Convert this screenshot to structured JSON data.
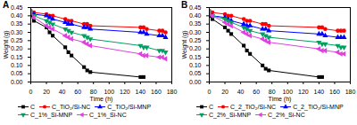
{
  "chart_data": [
    {
      "type": "line",
      "title": "A",
      "x_label": "Time (h)",
      "y_label": "Weight (g)",
      "legend": "bottom",
      "x": [
        0,
        4,
        20,
        24,
        28,
        44,
        48,
        52,
        68,
        72,
        76,
        140,
        144,
        148,
        164,
        168,
        172
      ],
      "xlim": [
        0,
        180
      ],
      "xticks": [
        0,
        20,
        40,
        60,
        80,
        100,
        120,
        140,
        160,
        180
      ],
      "ylim": [
        0,
        0.45
      ],
      "yticks": [
        {
          "value": 0,
          "label": "0.00"
        },
        {
          "value": 0.05,
          "label": "0.05"
        },
        {
          "value": 0.1,
          "label": "0.10"
        },
        {
          "value": 0.15,
          "label": "0.15"
        },
        {
          "value": 0.2,
          "label": "0.20"
        },
        {
          "value": 0.25,
          "label": "0.25"
        },
        {
          "value": 0.3,
          "label": "0.30"
        },
        {
          "value": 0.35,
          "label": "0.35"
        },
        {
          "value": 0.4,
          "label": "0.40"
        },
        {
          "value": 0.45,
          "label": "0.45"
        }
      ],
      "series": [
        {
          "name": "C",
          "color": "#000000",
          "marker": "square",
          "values": [
            0.4,
            0.37,
            0.33,
            0.3,
            0.28,
            0.21,
            0.18,
            0.16,
            0.09,
            0.07,
            0.06,
            0.03,
            0.03,
            null,
            null,
            null,
            null
          ]
        },
        {
          "name": "C_TiO₂/Si-NC",
          "color": "#ff0000",
          "marker": "circle",
          "values": [
            0.43,
            0.42,
            0.41,
            0.4,
            0.4,
            0.38,
            0.37,
            0.37,
            0.35,
            0.35,
            0.34,
            0.33,
            0.33,
            0.32,
            0.31,
            0.31,
            0.3
          ]
        },
        {
          "name": "C_TiO₂/Si-MNP",
          "color": "#0000ff",
          "marker": "triangle-up",
          "values": [
            0.42,
            0.41,
            0.4,
            0.39,
            0.38,
            0.36,
            0.35,
            0.35,
            0.33,
            0.33,
            0.32,
            0.3,
            0.3,
            0.29,
            0.28,
            0.28,
            0.27
          ]
        },
        {
          "name": "C_1%_Si-MNP",
          "color": "#00a060",
          "marker": "triangle-down",
          "values": [
            0.42,
            0.4,
            0.37,
            0.36,
            0.35,
            0.32,
            0.31,
            0.3,
            0.28,
            0.27,
            0.26,
            0.22,
            0.21,
            0.21,
            0.19,
            0.19,
            0.18
          ]
        },
        {
          "name": "C_1%_Si-NC",
          "color": "#e040e0",
          "marker": "triangle-left",
          "values": [
            0.42,
            0.39,
            0.34,
            0.33,
            0.32,
            0.28,
            0.27,
            0.26,
            0.24,
            0.23,
            0.22,
            0.17,
            0.16,
            0.16,
            0.15,
            0.15,
            0.14
          ]
        }
      ]
    },
    {
      "type": "line",
      "title": "B",
      "x_label": "Time (h)",
      "y_label": "Weight (g)",
      "legend": "bottom",
      "x": [
        0,
        4,
        20,
        24,
        28,
        44,
        48,
        52,
        68,
        72,
        76,
        140,
        144,
        148,
        164,
        168,
        172
      ],
      "xlim": [
        0,
        180
      ],
      "xticks": [
        0,
        20,
        40,
        60,
        80,
        100,
        120,
        140,
        160,
        180
      ],
      "ylim": [
        0,
        0.45
      ],
      "yticks": [
        {
          "value": 0,
          "label": "0.00"
        },
        {
          "value": 0.05,
          "label": "0.05"
        },
        {
          "value": 0.1,
          "label": "0.10"
        },
        {
          "value": 0.15,
          "label": "0.15"
        },
        {
          "value": 0.2,
          "label": "0.20"
        },
        {
          "value": 0.25,
          "label": "0.25"
        },
        {
          "value": 0.3,
          "label": "0.30"
        },
        {
          "value": 0.35,
          "label": "0.35"
        },
        {
          "value": 0.4,
          "label": "0.40"
        },
        {
          "value": 0.45,
          "label": "0.45"
        }
      ],
      "series": [
        {
          "name": "C",
          "color": "#000000",
          "marker": "square",
          "values": [
            0.4,
            0.38,
            0.33,
            0.31,
            0.29,
            0.22,
            0.19,
            0.17,
            0.1,
            0.08,
            0.07,
            0.03,
            0.03,
            null,
            null,
            null,
            null
          ]
        },
        {
          "name": "C_2_TiO₂/Si-NC",
          "color": "#ff0000",
          "marker": "circle",
          "values": [
            0.43,
            0.42,
            0.41,
            0.4,
            0.4,
            0.38,
            0.37,
            0.37,
            0.35,
            0.35,
            0.34,
            0.33,
            0.33,
            0.32,
            0.31,
            0.31,
            0.31
          ]
        },
        {
          "name": "C_2_TiO₂/Si-MNP",
          "color": "#0000ff",
          "marker": "triangle-up",
          "values": [
            0.41,
            0.4,
            0.39,
            0.38,
            0.37,
            0.35,
            0.34,
            0.34,
            0.32,
            0.32,
            0.31,
            0.29,
            0.29,
            0.28,
            0.27,
            0.27,
            0.27
          ]
        },
        {
          "name": "C_2%_Si-MNP",
          "color": "#00a060",
          "marker": "triangle-down",
          "values": [
            0.42,
            0.4,
            0.38,
            0.37,
            0.36,
            0.33,
            0.32,
            0.31,
            0.29,
            0.28,
            0.27,
            0.24,
            0.23,
            0.23,
            0.22,
            0.21,
            0.21
          ]
        },
        {
          "name": "C_2%_Si-NC",
          "color": "#e040e0",
          "marker": "triangle-left",
          "values": [
            0.42,
            0.4,
            0.36,
            0.35,
            0.34,
            0.3,
            0.29,
            0.28,
            0.26,
            0.25,
            0.24,
            0.2,
            0.19,
            0.19,
            0.18,
            0.17,
            0.17
          ]
        }
      ]
    }
  ]
}
